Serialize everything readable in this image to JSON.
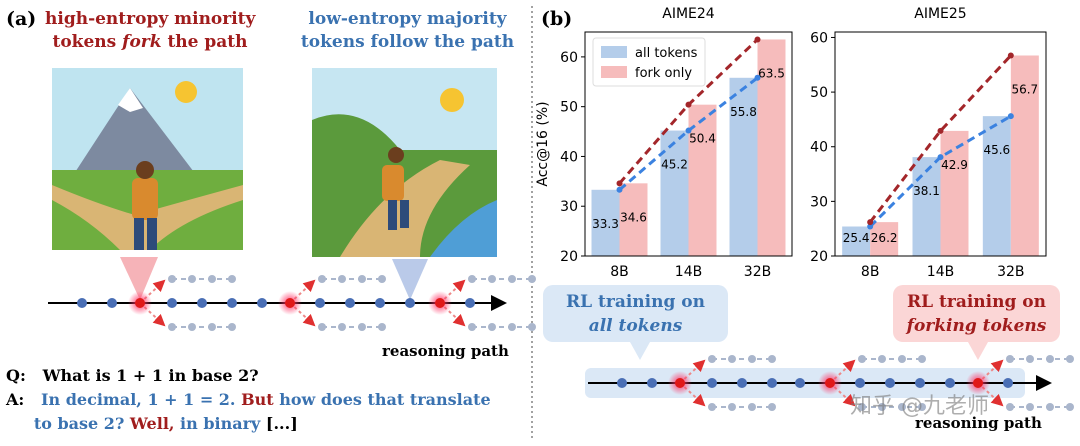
{
  "panel_a": {
    "label": "(a)",
    "left_title": {
      "line1": "high-entropy minority",
      "pre": "tokens",
      "em": "fork",
      "post": "the path"
    },
    "right_title": {
      "line1": "low-entropy majority",
      "line2": "tokens follow the path"
    },
    "path_label": "reasoning path",
    "q_label": "Q:",
    "question": "What is 1 + 1 in base 2?",
    "a_label": "A:",
    "answer": [
      "In decimal, 1 + 1 = 2.",
      "But",
      "how does that translate",
      "to base 2?",
      "Well,",
      "in binary",
      "[...]"
    ]
  },
  "panel_b": {
    "label": "(b)",
    "left_callout": {
      "line1": "RL training on",
      "line2": "all tokens"
    },
    "right_callout": {
      "line1": "RL training on",
      "line2": "forking tokens"
    },
    "path_label": "reasoning path",
    "watermark": "知乎 @九老师"
  },
  "chart_data": [
    {
      "type": "bar",
      "title": "AIME24",
      "ylabel": "Acc@16 (%)",
      "categories": [
        "8B",
        "14B",
        "32B"
      ],
      "series": [
        {
          "name": "all tokens",
          "color": "#b4cdea",
          "line_color": "#3b82e0",
          "values": [
            33.3,
            45.2,
            55.8
          ]
        },
        {
          "name": "fork only",
          "color": "#f6bcbc",
          "line_color": "#a3262a",
          "values": [
            34.6,
            50.4,
            63.5
          ]
        }
      ],
      "ylim": [
        20,
        65
      ],
      "yticks": [
        20,
        30,
        40,
        50,
        60
      ],
      "legend": "upper left"
    },
    {
      "type": "bar",
      "title": "AIME25",
      "categories": [
        "8B",
        "14B",
        "32B"
      ],
      "series": [
        {
          "name": "all tokens",
          "color": "#b4cdea",
          "line_color": "#3b82e0",
          "values": [
            25.4,
            38.1,
            45.6
          ]
        },
        {
          "name": "fork only",
          "color": "#f6bcbc",
          "line_color": "#a3262a",
          "values": [
            26.2,
            42.9,
            56.7
          ]
        }
      ],
      "ylim": [
        20,
        61
      ],
      "yticks": [
        20,
        30,
        40,
        50,
        60
      ]
    }
  ]
}
